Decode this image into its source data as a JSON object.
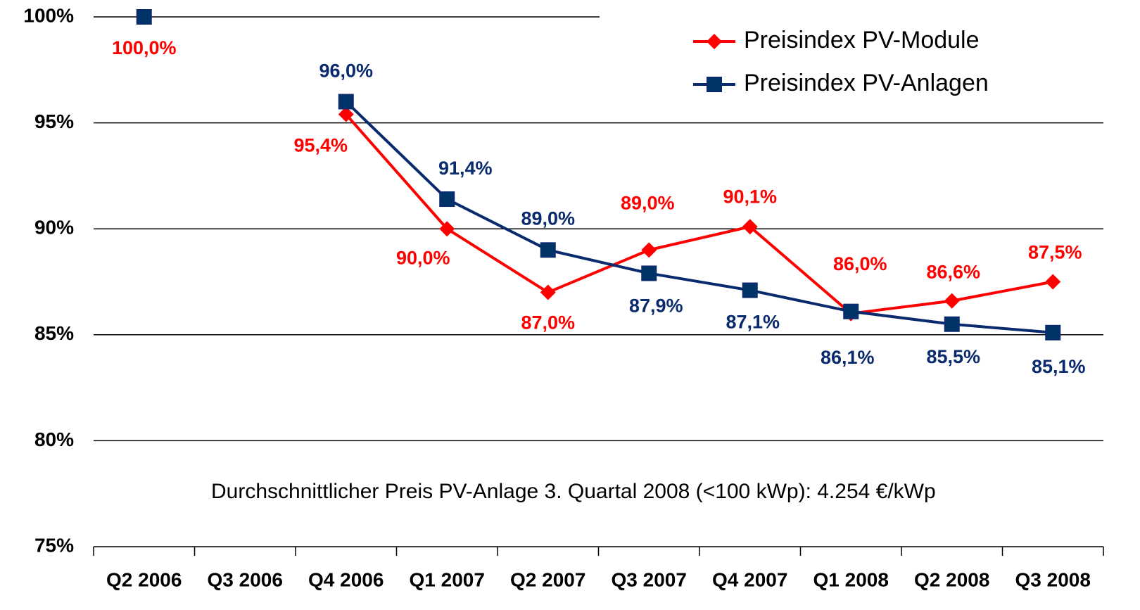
{
  "chart_data": {
    "type": "line",
    "categories": [
      "Q2 2006",
      "Q3 2006",
      "Q4 2006",
      "Q1 2007",
      "Q2 2007",
      "Q3 2007",
      "Q4 2007",
      "Q1 2008",
      "Q2 2008",
      "Q3 2008"
    ],
    "series": [
      {
        "name": "Preisindex PV-Module",
        "color": "#ff0000",
        "marker": "diamond",
        "values": [
          100,
          null,
          95.4,
          90.0,
          87.0,
          89.0,
          90.1,
          86.0,
          86.6,
          87.5
        ],
        "value_labels": [
          "100,0%",
          null,
          "95,4%",
          "90,0%",
          "87,0%",
          "89,0%",
          "90,1%",
          "86,0%",
          "86,6%",
          "87,5%"
        ]
      },
      {
        "name": "Preisindex PV-Anlagen",
        "color": "#0a2a6e",
        "marker": "square",
        "values": [
          100,
          null,
          96.0,
          91.4,
          89.0,
          87.9,
          87.1,
          86.1,
          85.5,
          85.1
        ],
        "value_labels": [
          null,
          null,
          "96,0%",
          "91,4%",
          "89,0%",
          "87,9%",
          "87,1%",
          "86,1%",
          "85,5%",
          "85,1%"
        ]
      }
    ],
    "ylim": [
      75,
      100
    ],
    "yticks": [
      {
        "value": 75,
        "label": "75%"
      },
      {
        "value": 80,
        "label": "80%"
      },
      {
        "value": 85,
        "label": "85%"
      },
      {
        "value": 90,
        "label": "90%"
      },
      {
        "value": 95,
        "label": "95%"
      },
      {
        "value": 100,
        "label": "100%"
      }
    ],
    "grid": true,
    "legend": "top-right",
    "annotation": "Durchschnittlicher Preis PV-Anlage 3. Quartal 2008 (<100 kWp): 4.254 €/kWp"
  }
}
